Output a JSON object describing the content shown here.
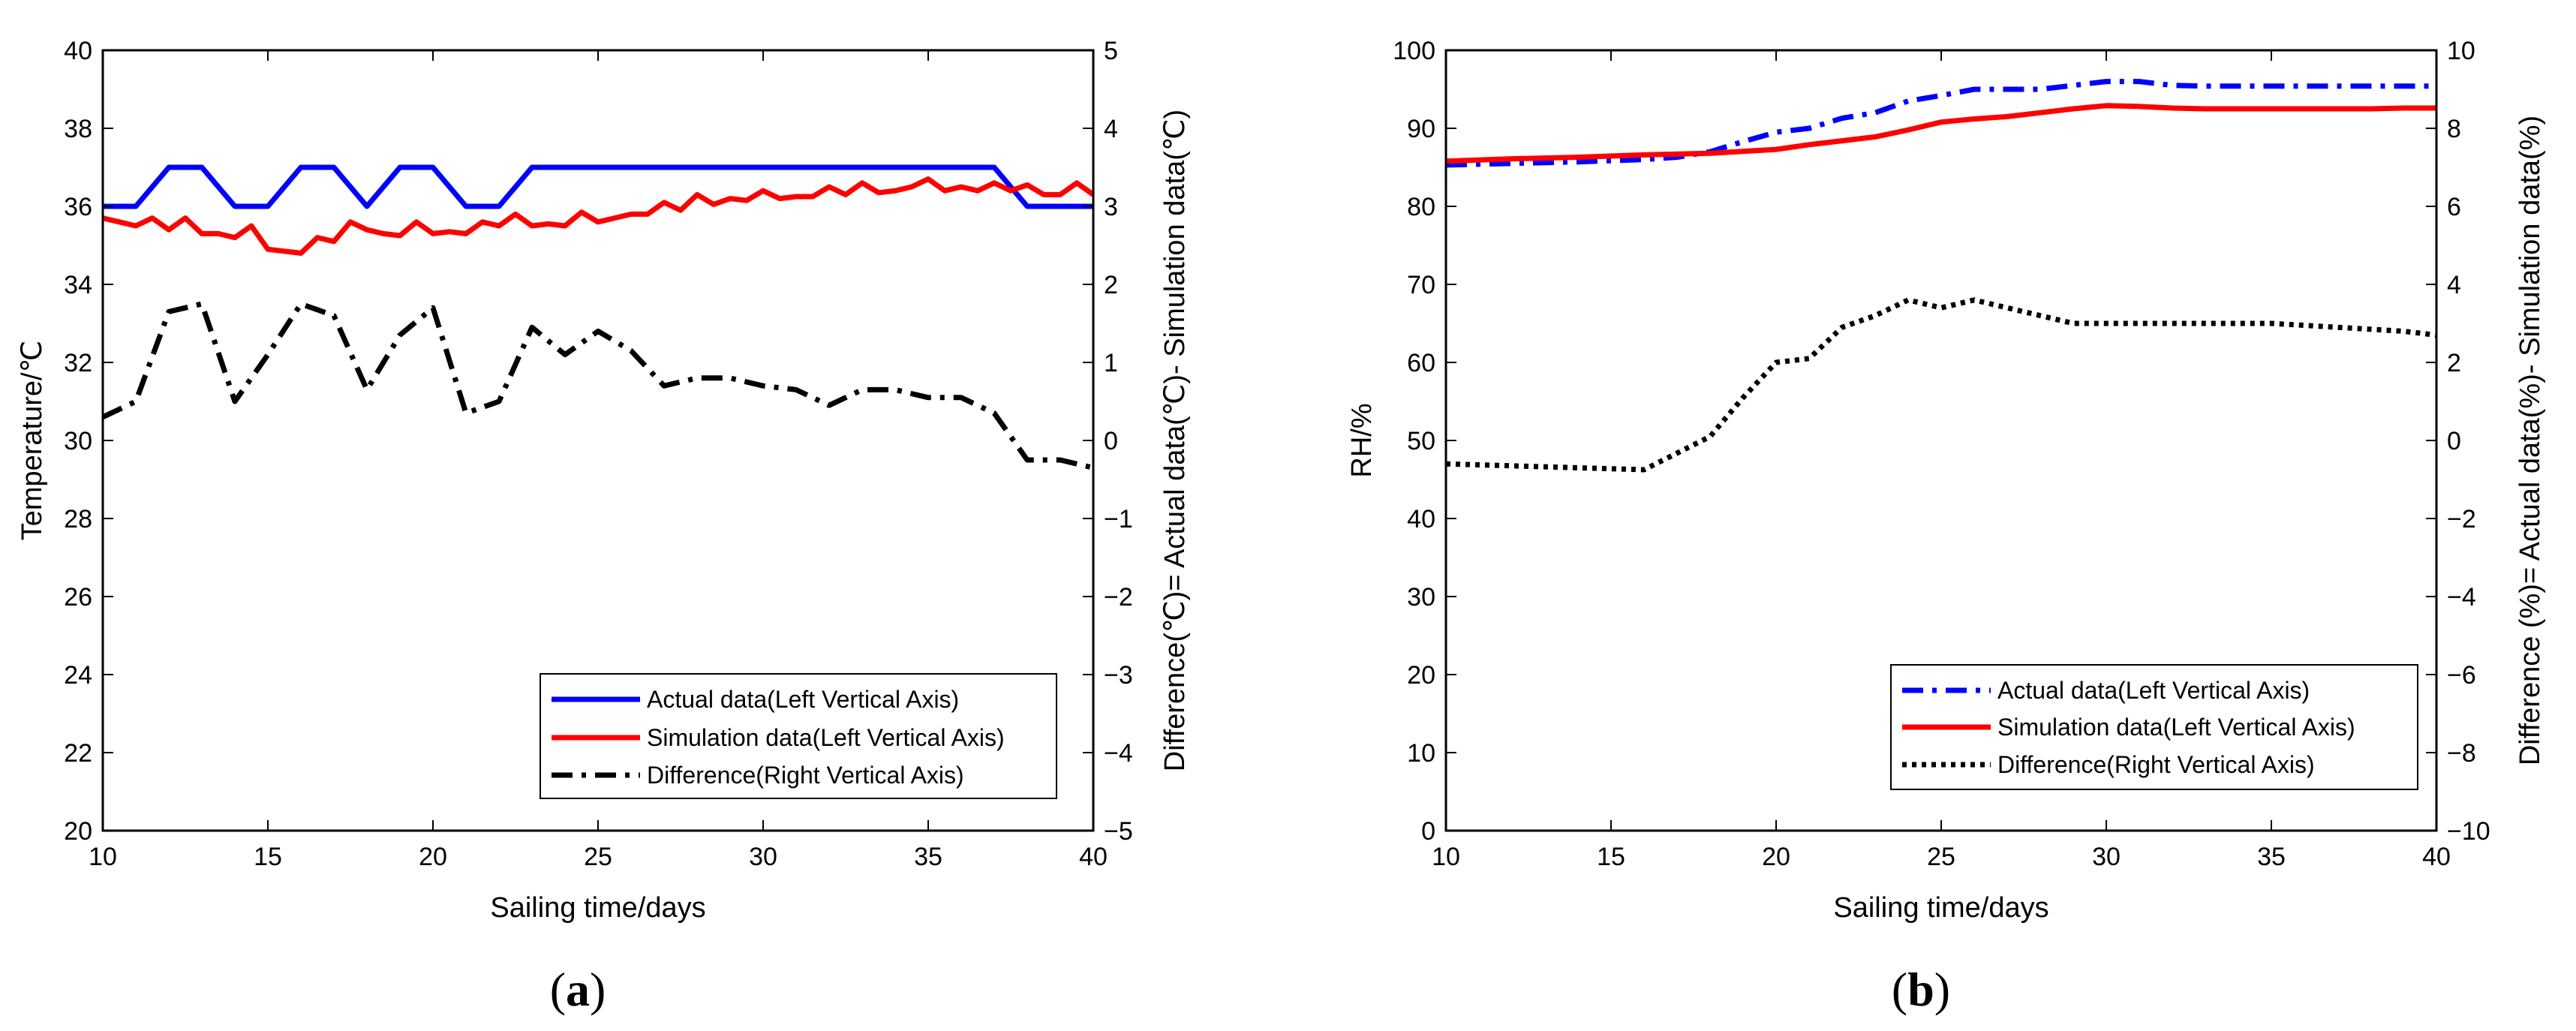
{
  "chart_data": [
    {
      "panel": "a",
      "type": "line",
      "title": "",
      "xlabel": "Sailing time/days",
      "ylabel": "Temperature/℃",
      "y2label": "Difference(℃)= Actual data(℃)- Simulation data(℃)",
      "xlim": [
        10,
        40
      ],
      "ylim": [
        20,
        40
      ],
      "y2lim": [
        -5,
        5
      ],
      "xticks": [
        10,
        15,
        20,
        25,
        30,
        35,
        40
      ],
      "yticks": [
        20,
        22,
        24,
        26,
        28,
        30,
        32,
        34,
        36,
        38,
        40
      ],
      "y2ticks": [
        -5,
        -4,
        -3,
        -2,
        -1,
        0,
        1,
        2,
        3,
        4,
        5
      ],
      "y2tick_labels": [
        "−5",
        "−4",
        "−3",
        "−2",
        "−1",
        "0",
        "1",
        "2",
        "3",
        "4",
        "5"
      ],
      "legend_position": "bottom-right",
      "series": [
        {
          "name": "Actual data(Left Vertical Axis)",
          "axis": "left",
          "color": "#0000ff",
          "dash": "solid",
          "x": [
            10,
            11,
            12,
            13,
            14,
            15,
            16,
            17,
            18,
            19,
            20,
            21,
            22,
            23,
            24,
            25,
            26,
            27,
            28,
            29,
            30,
            31,
            32,
            33,
            34,
            35,
            36,
            37,
            38,
            39,
            40
          ],
          "y": [
            36,
            36,
            37,
            37,
            36,
            36,
            37,
            37,
            36,
            37,
            37,
            36,
            36,
            37,
            37,
            37,
            37,
            37,
            37,
            37,
            37,
            37,
            37,
            37,
            37,
            37,
            37,
            37,
            36,
            36,
            36
          ]
        },
        {
          "name": "Simulation data(Left Vertical Axis)",
          "axis": "left",
          "color": "#ff0000",
          "dash": "solid",
          "x": [
            10,
            10.5,
            11,
            11.5,
            12,
            12.5,
            13,
            13.5,
            14,
            14.5,
            15,
            15.5,
            16,
            16.5,
            17,
            17.5,
            18,
            18.5,
            19,
            19.5,
            20,
            20.5,
            21,
            21.5,
            22,
            22.5,
            23,
            23.5,
            24,
            24.5,
            25,
            25.5,
            26,
            26.5,
            27,
            27.5,
            28,
            28.5,
            29,
            29.5,
            30,
            30.5,
            31,
            31.5,
            32,
            32.5,
            33,
            33.5,
            34,
            34.5,
            35,
            35.5,
            36,
            36.5,
            37,
            37.5,
            38,
            38.5,
            39,
            39.5,
            40
          ],
          "y": [
            35.7,
            35.6,
            35.5,
            35.7,
            35.4,
            35.7,
            35.3,
            35.3,
            35.2,
            35.5,
            34.9,
            34.85,
            34.8,
            35.2,
            35.1,
            35.6,
            35.4,
            35.3,
            35.25,
            35.6,
            35.3,
            35.35,
            35.3,
            35.6,
            35.5,
            35.8,
            35.5,
            35.55,
            35.5,
            35.85,
            35.6,
            35.7,
            35.8,
            35.8,
            36.1,
            35.9,
            36.3,
            36.05,
            36.2,
            36.15,
            36.4,
            36.2,
            36.25,
            36.25,
            36.5,
            36.3,
            36.6,
            36.35,
            36.4,
            36.5,
            36.7,
            36.4,
            36.5,
            36.4,
            36.6,
            36.4,
            36.55,
            36.3,
            36.3,
            36.6,
            36.3
          ]
        },
        {
          "name": "Difference(Right Vertical Axis)",
          "axis": "right",
          "color": "#000000",
          "dash": "dashdot",
          "x": [
            10,
            11,
            12,
            13,
            14,
            15,
            16,
            17,
            18,
            19,
            20,
            21,
            22,
            23,
            24,
            25,
            26,
            27,
            28,
            29,
            30,
            31,
            32,
            33,
            34,
            35,
            36,
            37,
            38,
            39,
            40
          ],
          "y": [
            0.3,
            0.5,
            1.65,
            1.75,
            0.5,
            1.1,
            1.75,
            1.6,
            0.65,
            1.35,
            1.7,
            0.35,
            0.5,
            1.45,
            1.1,
            1.4,
            1.15,
            0.7,
            0.8,
            0.8,
            0.7,
            0.65,
            0.45,
            0.65,
            0.65,
            0.55,
            0.55,
            0.35,
            -0.25,
            -0.25,
            -0.35
          ]
        }
      ]
    },
    {
      "panel": "b",
      "type": "line",
      "title": "",
      "xlabel": "Sailing time/days",
      "ylabel": "RH/%",
      "y2label": "Difference (%)= Actual data(%)- Simulation data(%)",
      "xlim": [
        10,
        40
      ],
      "ylim": [
        0,
        100
      ],
      "y2lim": [
        -10,
        10
      ],
      "xticks": [
        10,
        15,
        20,
        25,
        30,
        35,
        40
      ],
      "yticks": [
        0,
        10,
        20,
        30,
        40,
        50,
        60,
        70,
        80,
        90,
        100
      ],
      "y2ticks": [
        -10,
        -8,
        -6,
        -4,
        -2,
        0,
        2,
        4,
        6,
        8,
        10
      ],
      "y2tick_labels": [
        "−10",
        "−8",
        "−6",
        "−4",
        "−2",
        "0",
        "2",
        "4",
        "6",
        "8",
        "10"
      ],
      "legend_position": "bottom-right",
      "series": [
        {
          "name": "Actual data(Left Vertical Axis)",
          "axis": "left",
          "color": "#0000ff",
          "dash": "dashdot",
          "x": [
            10,
            12,
            14,
            16,
            17,
            18,
            19,
            20,
            21,
            22,
            23,
            24,
            25,
            26,
            27,
            28,
            29,
            30,
            31,
            32,
            33,
            34,
            35,
            36,
            37,
            38,
            39,
            40
          ],
          "y": [
            85.3,
            85.5,
            85.7,
            86,
            86.3,
            87,
            88.3,
            89.5,
            90,
            91.3,
            92,
            93.5,
            94.2,
            95,
            95,
            95,
            95.5,
            96,
            96,
            95.5,
            95.4,
            95.4,
            95.4,
            95.4,
            95.4,
            95.4,
            95.4,
            95.4
          ]
        },
        {
          "name": "Simulation data(Left Vertical Axis)",
          "axis": "left",
          "color": "#ff0000",
          "dash": "solid",
          "x": [
            10,
            12,
            14,
            16,
            18,
            20,
            21,
            22,
            23,
            24,
            25,
            26,
            27,
            28,
            29,
            30,
            31,
            32,
            33,
            34,
            35,
            36,
            37,
            38,
            39,
            40
          ],
          "y": [
            85.8,
            86.1,
            86.3,
            86.6,
            86.8,
            87.3,
            87.9,
            88.4,
            88.9,
            89.8,
            90.8,
            91.2,
            91.5,
            92,
            92.5,
            92.9,
            92.8,
            92.6,
            92.5,
            92.5,
            92.5,
            92.5,
            92.5,
            92.5,
            92.6,
            92.6
          ]
        },
        {
          "name": "Difference(Right Vertical Axis)",
          "axis": "right",
          "color": "#000000",
          "dash": "dotted",
          "x": [
            10,
            12,
            14,
            16,
            18,
            19,
            20,
            21,
            22,
            23,
            24,
            25,
            26,
            27,
            28,
            29,
            30,
            31,
            32,
            33,
            34,
            35,
            36,
            37,
            38,
            39,
            40
          ],
          "y": [
            -0.6,
            -0.65,
            -0.7,
            -0.75,
            0.1,
            1.1,
            2,
            2.1,
            2.9,
            3.2,
            3.6,
            3.4,
            3.6,
            3.4,
            3.2,
            3,
            3,
            3,
            3,
            3,
            3,
            3,
            2.95,
            2.9,
            2.85,
            2.8,
            2.7
          ]
        }
      ]
    }
  ],
  "subfigure_labels": [
    {
      "open": "(",
      "letter": "a",
      "close": ")"
    },
    {
      "open": "(",
      "letter": "b",
      "close": ")"
    }
  ]
}
